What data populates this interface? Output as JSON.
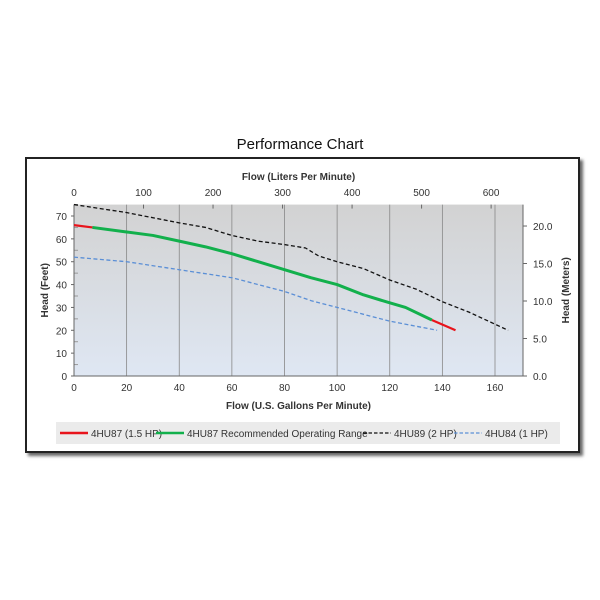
{
  "chart_data": {
    "type": "line",
    "title": "Performance Chart",
    "xlabel": "Flow (U.S. Gallons Per Minute)",
    "x2label": "Flow (Liters Per Minute)",
    "ylabel": "Head (Feet)",
    "y2label": "Head (Meters)",
    "xlim": [
      0,
      170
    ],
    "ylim": [
      0,
      75
    ],
    "xticks": [
      0,
      20,
      40,
      60,
      80,
      100,
      120,
      140,
      160
    ],
    "yticks": [
      0,
      10,
      20,
      30,
      40,
      50,
      60,
      70
    ],
    "x2ticks": [
      0,
      100,
      200,
      300,
      400,
      500,
      600
    ],
    "y2ticks": [
      "0.0",
      "5.0",
      "10.0",
      "15.0",
      "20.0"
    ],
    "grid": true,
    "legend_position": "bottom",
    "series": [
      {
        "name": "4HU87 (1.5 HP)",
        "color": "#e8141c",
        "dash": false,
        "segments": [
          [
            [
              0,
              66
            ],
            [
              7,
              65
            ]
          ],
          [
            [
              136,
              24.5
            ],
            [
              145,
              20
            ]
          ]
        ]
      },
      {
        "name": "4HU87 Recommended Operating Range",
        "color": "#12b04c",
        "dash": false,
        "segments": [
          [
            [
              7,
              65
            ],
            [
              20,
              63
            ],
            [
              30,
              61.5
            ],
            [
              40,
              59
            ],
            [
              50,
              56.5
            ],
            [
              60,
              53.5
            ],
            [
              70,
              50
            ],
            [
              80,
              46.5
            ],
            [
              90,
              43
            ],
            [
              100,
              40
            ],
            [
              110,
              35.5
            ],
            [
              120,
              32
            ],
            [
              126,
              30
            ],
            [
              136,
              24.5
            ]
          ]
        ]
      },
      {
        "name": "4HU89 (2 HP)",
        "color": "#111111",
        "dash": true,
        "segments": [
          [
            [
              0,
              75
            ],
            [
              20,
              71.5
            ],
            [
              40,
              67
            ],
            [
              50,
              65
            ],
            [
              60,
              61.5
            ],
            [
              70,
              59
            ],
            [
              80,
              57.5
            ],
            [
              88,
              56
            ],
            [
              93,
              52.5
            ],
            [
              100,
              50
            ],
            [
              110,
              47
            ],
            [
              120,
              42
            ],
            [
              130,
              38
            ],
            [
              140,
              32.5
            ],
            [
              150,
              28
            ],
            [
              165,
              20
            ]
          ]
        ]
      },
      {
        "name": "4HU84 (1 HP)",
        "color": "#5b8fd6",
        "dash": true,
        "segments": [
          [
            [
              0,
              52
            ],
            [
              20,
              50
            ],
            [
              40,
              46.5
            ],
            [
              60,
              43
            ],
            [
              70,
              40
            ],
            [
              80,
              37
            ],
            [
              90,
              33
            ],
            [
              100,
              30
            ],
            [
              120,
              24
            ],
            [
              138,
              20
            ]
          ]
        ]
      }
    ]
  }
}
